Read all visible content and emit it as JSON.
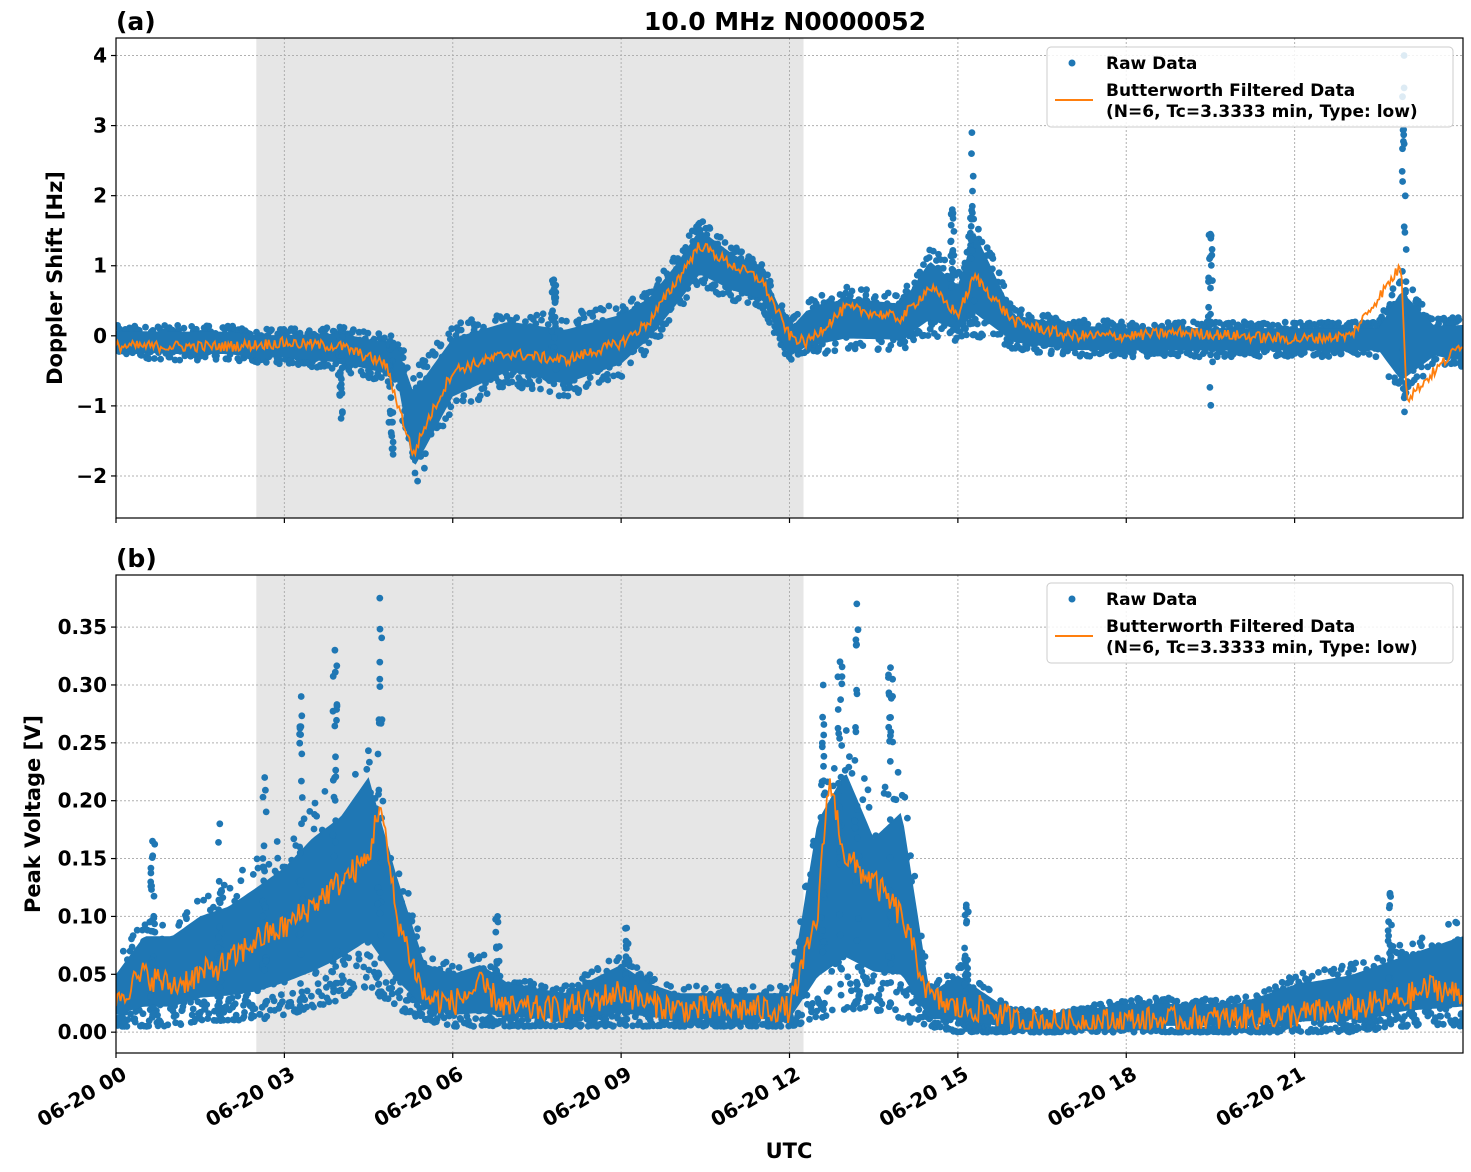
{
  "chart_data": [
    {
      "type": "scatter",
      "panel_label": "(a)",
      "title": "10.0 MHz N0000052",
      "xlabel": "",
      "ylabel": "Doppler Shift [Hz]",
      "ylim": [
        -2.6,
        4.25
      ],
      "xlim_hours": [
        0,
        24
      ],
      "x_ticks": [
        {
          "hour": 0,
          "label": "06-20 00"
        },
        {
          "hour": 3,
          "label": "06-20 03"
        },
        {
          "hour": 6,
          "label": "06-20 06"
        },
        {
          "hour": 9,
          "label": "06-20 09"
        },
        {
          "hour": 12,
          "label": "06-20 12"
        },
        {
          "hour": 15,
          "label": "06-20 15"
        },
        {
          "hour": 18,
          "label": "06-20 18"
        },
        {
          "hour": 21,
          "label": "06-20 21"
        }
      ],
      "y_ticks": [
        {
          "value": -2,
          "label": "−2"
        },
        {
          "value": -1,
          "label": "−1"
        },
        {
          "value": 0,
          "label": "0"
        },
        {
          "value": 1,
          "label": "1"
        },
        {
          "value": 2,
          "label": "2"
        },
        {
          "value": 3,
          "label": "3"
        },
        {
          "value": 4,
          "label": "4"
        }
      ],
      "shaded_region_hours": [
        2.5,
        12.25
      ],
      "grid": true,
      "legend_position": "top-right",
      "legend": [
        {
          "kind": "marker",
          "label": "Raw Data"
        },
        {
          "kind": "line",
          "label": "Butterworth Filtered Data",
          "label2": "(N=6, Tc=3.3333 min, Type: low)"
        }
      ],
      "series": [
        {
          "name": "Raw Data",
          "color": "#1f77b4",
          "band": {
            "hours": [
              0,
              1,
              2,
              2.5,
              3,
              4,
              5,
              5.3,
              5.5,
              6,
              7,
              8,
              9,
              9.5,
              10,
              10.4,
              11,
              11.5,
              12,
              12.3,
              13,
              14,
              14.5,
              15,
              15.3,
              16,
              17,
              18,
              19,
              20,
              21,
              22,
              22.5,
              22.9,
              23.5,
              24
            ],
            "low": [
              -0.3,
              -0.35,
              -0.35,
              -0.4,
              -0.4,
              -0.5,
              -0.7,
              -2.2,
              -1.9,
              -1.1,
              -0.7,
              -0.9,
              -0.6,
              -0.2,
              0.3,
              0.7,
              0.5,
              0.4,
              -0.4,
              -0.3,
              -0.2,
              -0.2,
              0.0,
              -0.1,
              0.0,
              -0.2,
              -0.3,
              -0.3,
              -0.3,
              -0.3,
              -0.3,
              -0.3,
              -0.3,
              -1.0,
              -0.4,
              -0.5
            ],
            "high": [
              0.15,
              0.15,
              0.15,
              0.1,
              0.1,
              0.15,
              0.0,
              -0.5,
              -0.3,
              0.2,
              0.4,
              0.3,
              0.5,
              0.7,
              1.2,
              1.7,
              1.3,
              1.1,
              0.2,
              0.5,
              0.7,
              0.6,
              1.3,
              0.9,
              1.8,
              0.4,
              0.25,
              0.2,
              0.2,
              0.2,
              0.2,
              0.2,
              0.2,
              1.0,
              0.25,
              0.3
            ]
          },
          "spikes": [
            {
              "hour": 4.0,
              "low": -1.2,
              "high": 0.1
            },
            {
              "hour": 4.9,
              "low": -1.7,
              "high": 0.0
            },
            {
              "hour": 7.8,
              "low": -0.5,
              "high": 0.8
            },
            {
              "hour": 14.9,
              "low": 0.0,
              "high": 1.8
            },
            {
              "hour": 15.25,
              "low": 0.0,
              "high": 2.9
            },
            {
              "hour": 19.5,
              "low": -1.0,
              "high": 1.45
            },
            {
              "hour": 22.95,
              "low": -1.15,
              "high": 4.0
            }
          ]
        },
        {
          "name": "Butterworth Filtered Data",
          "color": "#ff7f0e",
          "hours": [
            0,
            1,
            2,
            3,
            4,
            4.8,
            5.3,
            5.5,
            6,
            7,
            8,
            9,
            9.5,
            10,
            10.4,
            11,
            11.5,
            12,
            12.3,
            13,
            14,
            14.5,
            15,
            15.3,
            16,
            17,
            18,
            19,
            20,
            21,
            22,
            22.9,
            23.0,
            24
          ],
          "values": [
            -0.15,
            -0.15,
            -0.15,
            -0.1,
            -0.15,
            -0.4,
            -1.7,
            -1.3,
            -0.5,
            -0.25,
            -0.35,
            -0.1,
            0.2,
            0.8,
            1.3,
            1.0,
            0.8,
            0.0,
            -0.1,
            0.4,
            0.25,
            0.7,
            0.3,
            0.85,
            0.2,
            0.0,
            0.0,
            0.05,
            0.0,
            -0.05,
            0.0,
            1.0,
            -0.9,
            -0.1
          ]
        }
      ]
    },
    {
      "type": "scatter",
      "panel_label": "(b)",
      "title": "",
      "xlabel": "UTC",
      "ylabel": "Peak Voltage [V]",
      "ylim": [
        -0.018,
        0.395
      ],
      "xlim_hours": [
        0,
        24
      ],
      "x_ticks": [
        {
          "hour": 0,
          "label": "06-20 00"
        },
        {
          "hour": 3,
          "label": "06-20 03"
        },
        {
          "hour": 6,
          "label": "06-20 06"
        },
        {
          "hour": 9,
          "label": "06-20 09"
        },
        {
          "hour": 12,
          "label": "06-20 12"
        },
        {
          "hour": 15,
          "label": "06-20 15"
        },
        {
          "hour": 18,
          "label": "06-20 18"
        },
        {
          "hour": 21,
          "label": "06-20 21"
        }
      ],
      "y_ticks": [
        {
          "value": 0.0,
          "label": "0.00"
        },
        {
          "value": 0.05,
          "label": "0.05"
        },
        {
          "value": 0.1,
          "label": "0.10"
        },
        {
          "value": 0.15,
          "label": "0.15"
        },
        {
          "value": 0.2,
          "label": "0.20"
        },
        {
          "value": 0.25,
          "label": "0.25"
        },
        {
          "value": 0.3,
          "label": "0.30"
        },
        {
          "value": 0.35,
          "label": "0.35"
        }
      ],
      "shaded_region_hours": [
        2.5,
        12.25
      ],
      "grid": true,
      "legend_position": "top-right",
      "legend": [
        {
          "kind": "marker",
          "label": "Raw Data"
        },
        {
          "kind": "line",
          "label": "Butterworth Filtered Data",
          "label2": "(N=6, Tc=3.3333 min, Type: low)"
        }
      ],
      "series": [
        {
          "name": "Raw Data",
          "color": "#1f77b4",
          "band": {
            "hours": [
              0,
              0.5,
              1,
              1.5,
              2,
              2.5,
              3,
              3.5,
              4,
              4.5,
              5,
              5.5,
              6,
              6.5,
              7,
              8,
              9,
              9.5,
              10,
              11,
              12,
              12.5,
              13,
              13.5,
              14,
              14.5,
              15,
              15.5,
              16,
              17,
              18,
              19,
              20,
              21,
              22,
              23,
              24
            ],
            "low": [
              0.005,
              0.005,
              0.005,
              0.01,
              0.01,
              0.01,
              0.015,
              0.02,
              0.03,
              0.04,
              0.02,
              0.01,
              0.005,
              0.005,
              0.005,
              0.005,
              0.005,
              0.005,
              0.005,
              0.005,
              0.005,
              0.01,
              0.02,
              0.02,
              0.01,
              0.005,
              0.0,
              0.0,
              0.0,
              0.0,
              0.0,
              0.0,
              0.0,
              0.0,
              0.0,
              0.005,
              0.005
            ],
            "high": [
              0.06,
              0.1,
              0.1,
              0.12,
              0.13,
              0.15,
              0.17,
              0.2,
              0.22,
              0.26,
              0.16,
              0.07,
              0.06,
              0.07,
              0.05,
              0.04,
              0.07,
              0.05,
              0.04,
              0.04,
              0.04,
              0.22,
              0.27,
              0.2,
              0.23,
              0.04,
              0.06,
              0.04,
              0.02,
              0.02,
              0.03,
              0.03,
              0.03,
              0.05,
              0.06,
              0.08,
              0.1
            ]
          },
          "spikes": [
            {
              "hour": 0.65,
              "low": 0.01,
              "high": 0.165
            },
            {
              "hour": 1.85,
              "low": 0.01,
              "high": 0.18
            },
            {
              "hour": 2.65,
              "low": 0.01,
              "high": 0.22
            },
            {
              "hour": 3.3,
              "low": 0.02,
              "high": 0.29
            },
            {
              "hour": 3.9,
              "low": 0.02,
              "high": 0.33
            },
            {
              "hour": 4.7,
              "low": 0.03,
              "high": 0.375
            },
            {
              "hour": 6.8,
              "low": 0.005,
              "high": 0.1
            },
            {
              "hour": 9.1,
              "low": 0.005,
              "high": 0.09
            },
            {
              "hour": 12.6,
              "low": 0.01,
              "high": 0.3
            },
            {
              "hour": 12.9,
              "low": 0.02,
              "high": 0.32
            },
            {
              "hour": 13.2,
              "low": 0.02,
              "high": 0.37
            },
            {
              "hour": 13.8,
              "low": 0.02,
              "high": 0.315
            },
            {
              "hour": 15.15,
              "low": 0.01,
              "high": 0.11
            },
            {
              "hour": 22.7,
              "low": 0.005,
              "high": 0.12
            }
          ]
        },
        {
          "name": "Butterworth Filtered Data",
          "color": "#ff7f0e",
          "hours": [
            0,
            0.5,
            1,
            1.5,
            2,
            2.5,
            3,
            3.5,
            4,
            4.5,
            4.7,
            5,
            5.5,
            6,
            6.5,
            7,
            8,
            9,
            9.5,
            10,
            11,
            12,
            12.5,
            12.7,
            13,
            13.5,
            14,
            14.5,
            15,
            15.5,
            16,
            17,
            18,
            19,
            20,
            21,
            22,
            23,
            23.5,
            24
          ],
          "values": [
            0.03,
            0.05,
            0.04,
            0.05,
            0.06,
            0.08,
            0.09,
            0.11,
            0.13,
            0.15,
            0.2,
            0.1,
            0.03,
            0.025,
            0.04,
            0.02,
            0.02,
            0.035,
            0.025,
            0.02,
            0.02,
            0.02,
            0.1,
            0.22,
            0.15,
            0.13,
            0.1,
            0.03,
            0.02,
            0.02,
            0.01,
            0.008,
            0.01,
            0.01,
            0.012,
            0.015,
            0.02,
            0.03,
            0.04,
            0.03
          ]
        }
      ]
    }
  ]
}
